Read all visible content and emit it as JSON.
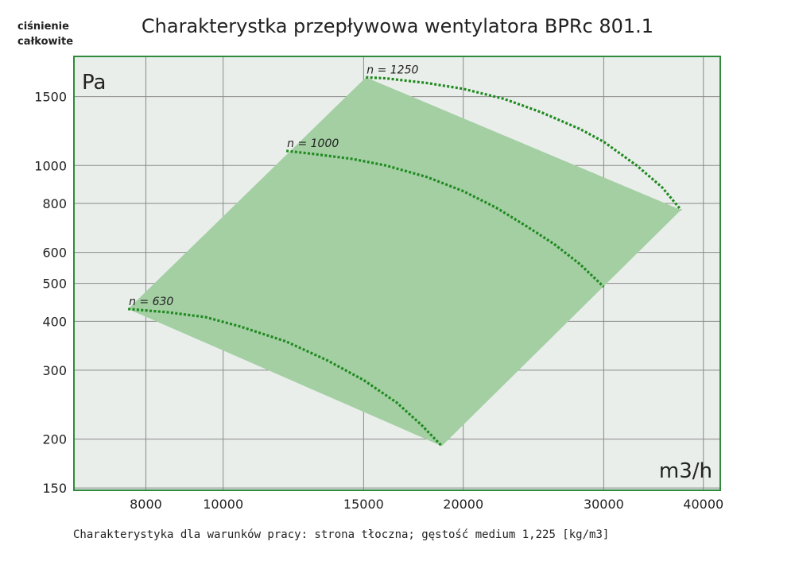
{
  "chart_data": {
    "type": "line",
    "title": "Charakterystka przepływowa wentylatora BPRc 801.1",
    "ylabel_corner": [
      "ciśnienie",
      "całkowite"
    ],
    "y_unit": "Pa",
    "x_unit": "m3/h",
    "footnote": "Charakterystyka dla warunków pracy: strona tłoczna; gęstość medium 1,225 [kg/m3]",
    "x_scale": "log",
    "y_scale": "log",
    "xlim": [
      6500,
      42000
    ],
    "ylim": [
      148,
      1900
    ],
    "grid": true,
    "x_ticks": [
      8000,
      10000,
      15000,
      20000,
      30000,
      40000
    ],
    "x_tick_labels": [
      "8000",
      "10000",
      "15000",
      "20000",
      "30000",
      "40000"
    ],
    "y_ticks": [
      150,
      200,
      300,
      400,
      500,
      600,
      800,
      1000,
      1500
    ],
    "y_tick_labels": [
      "150",
      "200",
      "300",
      "400",
      "500",
      "600",
      "800",
      "1000",
      "1500"
    ],
    "colors": {
      "background": "#e9eeea",
      "frame": "#2e8b3c",
      "region_fill": "#a3cfa3",
      "curve": "#1f8a1f"
    },
    "operating_region": [
      [
        7600,
        430
      ],
      [
        15100,
        1680
      ],
      [
        37500,
        770
      ],
      [
        18800,
        192
      ]
    ],
    "series": [
      {
        "name": "n = 630",
        "points": [
          [
            7600,
            430
          ],
          [
            8500,
            422
          ],
          [
            9500,
            410
          ],
          [
            10500,
            388
          ],
          [
            12000,
            355
          ],
          [
            13500,
            318
          ],
          [
            15000,
            283
          ],
          [
            16500,
            248
          ],
          [
            17700,
            218
          ],
          [
            18800,
            192
          ]
        ]
      },
      {
        "name": "n = 1000",
        "points": [
          [
            12000,
            1090
          ],
          [
            13000,
            1070
          ],
          [
            14500,
            1040
          ],
          [
            16000,
            1000
          ],
          [
            18000,
            935
          ],
          [
            20000,
            860
          ],
          [
            22000,
            780
          ],
          [
            24000,
            700
          ],
          [
            26000,
            630
          ],
          [
            28000,
            560
          ],
          [
            30000,
            490
          ]
        ]
      },
      {
        "name": "n = 1250",
        "points": [
          [
            15100,
            1680
          ],
          [
            16000,
            1670
          ],
          [
            18000,
            1625
          ],
          [
            20000,
            1570
          ],
          [
            22500,
            1480
          ],
          [
            25000,
            1370
          ],
          [
            28000,
            1240
          ],
          [
            30000,
            1150
          ],
          [
            33000,
            1000
          ],
          [
            35500,
            880
          ],
          [
            37500,
            770
          ]
        ]
      }
    ]
  }
}
